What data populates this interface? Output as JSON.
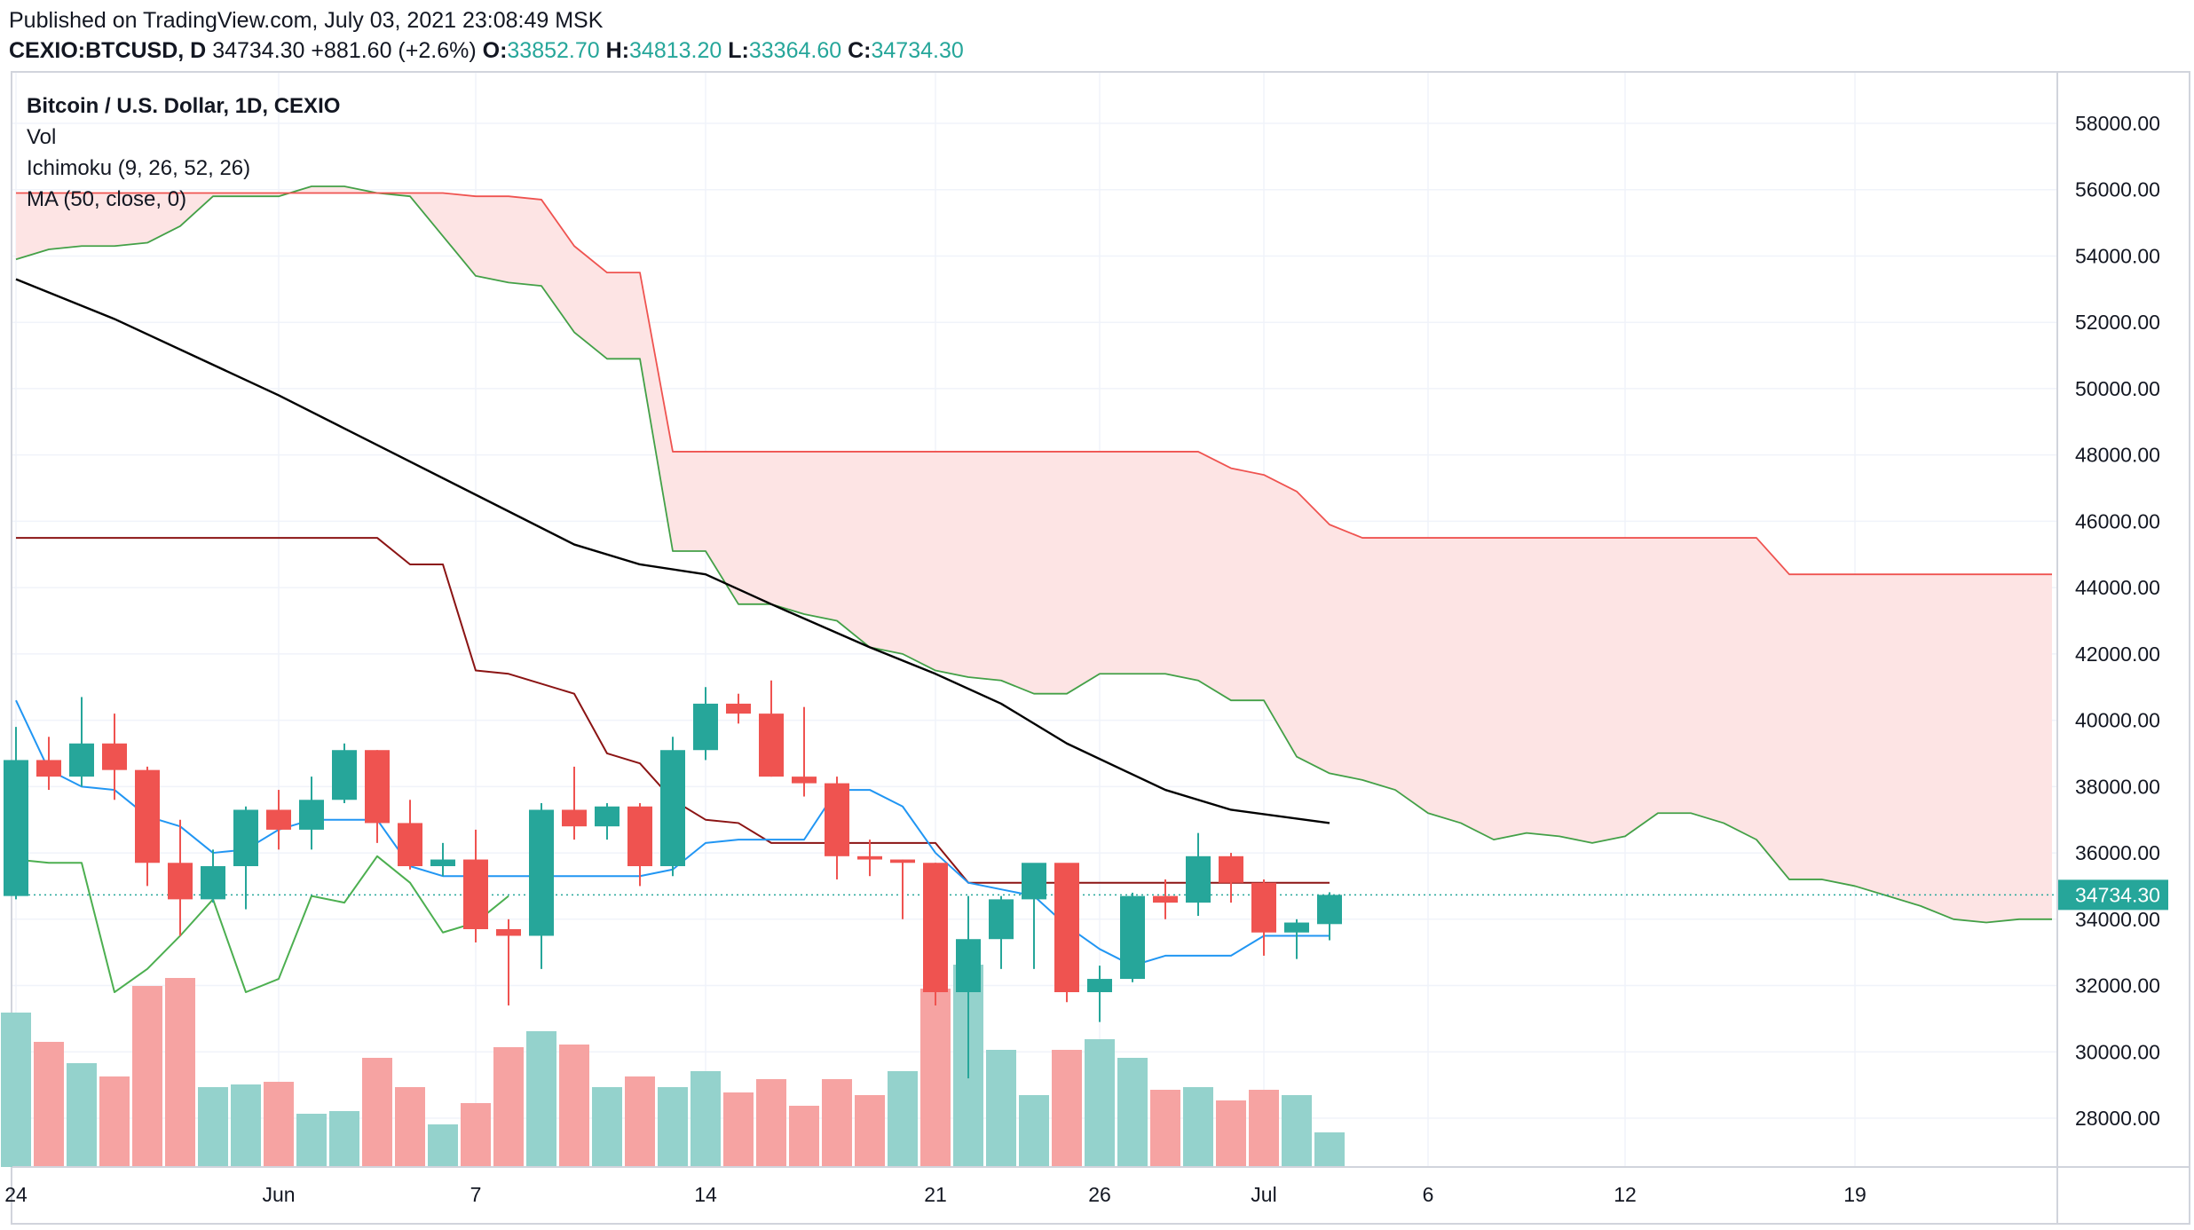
{
  "header": {
    "published": "Published on TradingView.com, July 03, 2021 23:08:49 MSK",
    "symbol": "CEXIO:BTCUSD, D",
    "last": "34734.30",
    "change": "+881.60 (+2.6%)",
    "o_label": "O:",
    "o_value": "33852.70",
    "h_label": "H:",
    "h_value": "34813.20",
    "l_label": "L:",
    "l_value": "33364.60",
    "c_label": "C:",
    "c_value": "34734.30"
  },
  "legend": {
    "title": "Bitcoin / U.S. Dollar, 1D, CEXIO",
    "vol": "Vol",
    "ichimoku": "Ichimoku (9, 26, 52, 26)",
    "ma": "MA (50, close, 0)"
  },
  "colors": {
    "up": "#26a69a",
    "down": "#ef5350",
    "vol_up": "#94d2cc",
    "vol_down": "#f6a3a2",
    "ma": "#000000",
    "kijun": "#8b1414",
    "tenkan": "#2196f3",
    "span_a": "#43a047",
    "span_b": "#ef5350",
    "cloud": "#fde4e4",
    "lagging": "#4caf50",
    "last_price": "#26a69a",
    "grid": "#f0f3fa"
  },
  "chart_data": {
    "type": "candlestick",
    "y_axis": {
      "range": [
        26500,
        59000
      ],
      "ticks": [
        "58000.00",
        "56000.00",
        "54000.00",
        "52000.00",
        "50000.00",
        "48000.00",
        "46000.00",
        "44000.00",
        "42000.00",
        "40000.00",
        "38000.00",
        "36000.00",
        "34000.00",
        "32000.00",
        "30000.00",
        "28000.00"
      ]
    },
    "x_axis": {
      "ticks": [
        {
          "label": "24",
          "i": 0
        },
        {
          "label": "Jun",
          "i": 8
        },
        {
          "label": "7",
          "i": 14
        },
        {
          "label": "14",
          "i": 21
        },
        {
          "label": "21",
          "i": 28
        },
        {
          "label": "26",
          "i": 33
        },
        {
          "label": "Jul",
          "i": 38
        },
        {
          "label": "6",
          "i": 43
        },
        {
          "label": "12",
          "i": 49
        },
        {
          "label": "19",
          "i": 56
        }
      ]
    },
    "last_price_label": "34734.30",
    "last_price": 34734.3,
    "candles": [
      {
        "o": 34700,
        "h": 39800,
        "l": 34600,
        "c": 38800
      },
      {
        "o": 38800,
        "h": 39500,
        "l": 37900,
        "c": 38300
      },
      {
        "o": 38300,
        "h": 40700,
        "l": 38000,
        "c": 39300
      },
      {
        "o": 39300,
        "h": 40200,
        "l": 37600,
        "c": 38500
      },
      {
        "o": 38500,
        "h": 38600,
        "l": 35000,
        "c": 35700
      },
      {
        "o": 35700,
        "h": 37000,
        "l": 33500,
        "c": 34600
      },
      {
        "o": 34600,
        "h": 36100,
        "l": 34500,
        "c": 35600
      },
      {
        "o": 35600,
        "h": 37400,
        "l": 34300,
        "c": 37300
      },
      {
        "o": 37300,
        "h": 37900,
        "l": 36100,
        "c": 36700
      },
      {
        "o": 36700,
        "h": 38300,
        "l": 36100,
        "c": 37600
      },
      {
        "o": 37600,
        "h": 39300,
        "l": 37500,
        "c": 39100
      },
      {
        "o": 39100,
        "h": 39100,
        "l": 36300,
        "c": 36900
      },
      {
        "o": 36900,
        "h": 37600,
        "l": 35500,
        "c": 35600
      },
      {
        "o": 35600,
        "h": 36300,
        "l": 35300,
        "c": 35800
      },
      {
        "o": 35800,
        "h": 36700,
        "l": 33300,
        "c": 33700
      },
      {
        "o": 33700,
        "h": 34000,
        "l": 31400,
        "c": 33500
      },
      {
        "o": 33500,
        "h": 37500,
        "l": 32500,
        "c": 37300
      },
      {
        "o": 37300,
        "h": 38600,
        "l": 36400,
        "c": 36800
      },
      {
        "o": 36800,
        "h": 37500,
        "l": 36400,
        "c": 37400
      },
      {
        "o": 37400,
        "h": 37500,
        "l": 35000,
        "c": 35600
      },
      {
        "o": 35600,
        "h": 39500,
        "l": 35300,
        "c": 39100
      },
      {
        "o": 39100,
        "h": 41000,
        "l": 38800,
        "c": 40500
      },
      {
        "o": 40500,
        "h": 40800,
        "l": 39900,
        "c": 40200
      },
      {
        "o": 40200,
        "h": 41200,
        "l": 38300,
        "c": 38300
      },
      {
        "o": 38300,
        "h": 40400,
        "l": 37700,
        "c": 38100
      },
      {
        "o": 38100,
        "h": 38300,
        "l": 35200,
        "c": 35900
      },
      {
        "o": 35900,
        "h": 36400,
        "l": 35300,
        "c": 35800
      },
      {
        "o": 35800,
        "h": 35800,
        "l": 34000,
        "c": 35700
      },
      {
        "o": 35700,
        "h": 35700,
        "l": 31400,
        "c": 31800
      },
      {
        "o": 31800,
        "h": 34700,
        "l": 29200,
        "c": 33400
      },
      {
        "o": 33400,
        "h": 34700,
        "l": 32500,
        "c": 34600
      },
      {
        "o": 34600,
        "h": 35400,
        "l": 32500,
        "c": 35700
      },
      {
        "o": 35700,
        "h": 35500,
        "l": 31500,
        "c": 31800
      },
      {
        "o": 31800,
        "h": 32600,
        "l": 30900,
        "c": 32200
      },
      {
        "o": 32200,
        "h": 34800,
        "l": 32100,
        "c": 34700
      },
      {
        "o": 34700,
        "h": 35200,
        "l": 34000,
        "c": 34500
      },
      {
        "o": 34500,
        "h": 36600,
        "l": 34100,
        "c": 35900
      },
      {
        "o": 35900,
        "h": 36000,
        "l": 34500,
        "c": 35100
      },
      {
        "o": 35100,
        "h": 35200,
        "l": 32900,
        "c": 33600
      },
      {
        "o": 33600,
        "h": 34000,
        "l": 32800,
        "c": 33900
      },
      {
        "o": 33853,
        "h": 34813,
        "l": 33365,
        "c": 34734
      }
    ],
    "volume": [
      {
        "v": 0.58,
        "up": true
      },
      {
        "v": 0.47,
        "up": false
      },
      {
        "v": 0.39,
        "up": true
      },
      {
        "v": 0.34,
        "up": false
      },
      {
        "v": 0.68,
        "up": false
      },
      {
        "v": 0.71,
        "up": false
      },
      {
        "v": 0.3,
        "up": true
      },
      {
        "v": 0.31,
        "up": true
      },
      {
        "v": 0.32,
        "up": false
      },
      {
        "v": 0.2,
        "up": true
      },
      {
        "v": 0.21,
        "up": true
      },
      {
        "v": 0.41,
        "up": false
      },
      {
        "v": 0.3,
        "up": false
      },
      {
        "v": 0.16,
        "up": true
      },
      {
        "v": 0.24,
        "up": false
      },
      {
        "v": 0.45,
        "up": false
      },
      {
        "v": 0.51,
        "up": true
      },
      {
        "v": 0.46,
        "up": false
      },
      {
        "v": 0.3,
        "up": true
      },
      {
        "v": 0.34,
        "up": false
      },
      {
        "v": 0.3,
        "up": true
      },
      {
        "v": 0.36,
        "up": true
      },
      {
        "v": 0.28,
        "up": false
      },
      {
        "v": 0.33,
        "up": false
      },
      {
        "v": 0.23,
        "up": false
      },
      {
        "v": 0.33,
        "up": false
      },
      {
        "v": 0.27,
        "up": false
      },
      {
        "v": 0.36,
        "up": true
      },
      {
        "v": 0.67,
        "up": false
      },
      {
        "v": 0.76,
        "up": true
      },
      {
        "v": 0.44,
        "up": true
      },
      {
        "v": 0.27,
        "up": true
      },
      {
        "v": 0.44,
        "up": false
      },
      {
        "v": 0.48,
        "up": true
      },
      {
        "v": 0.41,
        "up": true
      },
      {
        "v": 0.29,
        "up": false
      },
      {
        "v": 0.3,
        "up": true
      },
      {
        "v": 0.25,
        "up": false
      },
      {
        "v": 0.29,
        "up": false
      },
      {
        "v": 0.27,
        "up": true
      },
      {
        "v": 0.13,
        "up": true
      }
    ],
    "ma50": [
      [
        0,
        53300
      ],
      [
        3,
        52100
      ],
      [
        8,
        49800
      ],
      [
        10,
        48800
      ],
      [
        14,
        46800
      ],
      [
        17,
        45300
      ],
      [
        19,
        44700
      ],
      [
        21,
        44400
      ],
      [
        23,
        43500
      ],
      [
        26,
        42200
      ],
      [
        28,
        41400
      ],
      [
        30,
        40500
      ],
      [
        32,
        39300
      ],
      [
        35,
        37900
      ],
      [
        37,
        37300
      ],
      [
        40,
        36900
      ]
    ],
    "kijun": [
      [
        0,
        45500
      ],
      [
        11,
        45500
      ],
      [
        12,
        44700
      ],
      [
        13,
        44700
      ],
      [
        14,
        41500
      ],
      [
        15,
        41400
      ],
      [
        17,
        40800
      ],
      [
        18,
        39000
      ],
      [
        19,
        38700
      ],
      [
        20,
        37600
      ],
      [
        21,
        37000
      ],
      [
        22,
        36900
      ],
      [
        23,
        36300
      ],
      [
        27,
        36300
      ],
      [
        28,
        36300
      ],
      [
        29,
        35100
      ],
      [
        40,
        35100
      ]
    ],
    "tenkan": [
      [
        0,
        40600
      ],
      [
        1,
        38500
      ],
      [
        2,
        38000
      ],
      [
        3,
        37900
      ],
      [
        4,
        37100
      ],
      [
        5,
        36800
      ],
      [
        6,
        36000
      ],
      [
        7,
        36100
      ],
      [
        8,
        36700
      ],
      [
        9,
        37000
      ],
      [
        10,
        37000
      ],
      [
        11,
        37000
      ],
      [
        12,
        35600
      ],
      [
        13,
        35300
      ],
      [
        14,
        35300
      ],
      [
        15,
        35300
      ],
      [
        16,
        35300
      ],
      [
        17,
        35300
      ],
      [
        18,
        35300
      ],
      [
        19,
        35300
      ],
      [
        20,
        35500
      ],
      [
        21,
        36300
      ],
      [
        22,
        36400
      ],
      [
        23,
        36400
      ],
      [
        24,
        36400
      ],
      [
        25,
        37900
      ],
      [
        26,
        37900
      ],
      [
        27,
        37400
      ],
      [
        28,
        36000
      ],
      [
        29,
        35100
      ],
      [
        30,
        34900
      ],
      [
        31,
        34700
      ],
      [
        32,
        33800
      ],
      [
        33,
        33100
      ],
      [
        34,
        32600
      ],
      [
        35,
        32900
      ],
      [
        36,
        32900
      ],
      [
        37,
        32900
      ],
      [
        38,
        33500
      ],
      [
        39,
        33500
      ],
      [
        40,
        33500
      ]
    ],
    "lagging": [
      [
        0,
        35800
      ],
      [
        1,
        35700
      ],
      [
        2,
        35700
      ],
      [
        3,
        31800
      ],
      [
        4,
        32500
      ],
      [
        5,
        33500
      ],
      [
        6,
        34600
      ],
      [
        7,
        31800
      ],
      [
        8,
        32200
      ],
      [
        9,
        34700
      ],
      [
        10,
        34500
      ],
      [
        11,
        35900
      ],
      [
        12,
        35100
      ],
      [
        13,
        33600
      ],
      [
        14,
        33900
      ],
      [
        15,
        34700
      ]
    ],
    "span_a": [
      [
        0,
        53900
      ],
      [
        1,
        54200
      ],
      [
        2,
        54300
      ],
      [
        3,
        54300
      ],
      [
        4,
        54400
      ],
      [
        5,
        54900
      ],
      [
        6,
        55800
      ],
      [
        7,
        55800
      ],
      [
        8,
        55800
      ],
      [
        9,
        56100
      ],
      [
        10,
        56100
      ],
      [
        11,
        55900
      ],
      [
        12,
        55800
      ],
      [
        13,
        54600
      ],
      [
        14,
        53400
      ],
      [
        15,
        53200
      ],
      [
        16,
        53100
      ],
      [
        17,
        51700
      ],
      [
        18,
        50900
      ],
      [
        19,
        50900
      ],
      [
        20,
        45100
      ],
      [
        21,
        45100
      ],
      [
        22,
        43500
      ],
      [
        23,
        43500
      ],
      [
        24,
        43200
      ],
      [
        25,
        43000
      ],
      [
        26,
        42200
      ],
      [
        27,
        42000
      ],
      [
        28,
        41500
      ],
      [
        29,
        41300
      ],
      [
        30,
        41200
      ],
      [
        31,
        40800
      ],
      [
        32,
        40800
      ],
      [
        33,
        41400
      ],
      [
        34,
        41400
      ],
      [
        35,
        41400
      ],
      [
        36,
        41200
      ],
      [
        37,
        40600
      ],
      [
        38,
        40600
      ],
      [
        39,
        38900
      ],
      [
        40,
        38400
      ],
      [
        41,
        38200
      ],
      [
        42,
        37900
      ],
      [
        43,
        37200
      ],
      [
        44,
        36900
      ],
      [
        45,
        36400
      ],
      [
        46,
        36600
      ],
      [
        47,
        36500
      ],
      [
        48,
        36300
      ],
      [
        49,
        36500
      ],
      [
        50,
        37200
      ],
      [
        51,
        37200
      ],
      [
        52,
        36900
      ],
      [
        53,
        36400
      ],
      [
        54,
        35200
      ],
      [
        55,
        35200
      ],
      [
        56,
        35000
      ],
      [
        57,
        34700
      ],
      [
        58,
        34400
      ],
      [
        59,
        34000
      ],
      [
        60,
        33900
      ],
      [
        61,
        34000
      ],
      [
        62,
        34000
      ]
    ],
    "span_b": [
      [
        0,
        55900
      ],
      [
        1,
        55900
      ],
      [
        2,
        55900
      ],
      [
        3,
        55900
      ],
      [
        4,
        55900
      ],
      [
        5,
        55900
      ],
      [
        6,
        55900
      ],
      [
        7,
        55900
      ],
      [
        8,
        55900
      ],
      [
        9,
        55900
      ],
      [
        10,
        55900
      ],
      [
        11,
        55900
      ],
      [
        12,
        55900
      ],
      [
        13,
        55900
      ],
      [
        14,
        55800
      ],
      [
        15,
        55800
      ],
      [
        16,
        55700
      ],
      [
        17,
        54300
      ],
      [
        18,
        53500
      ],
      [
        19,
        53500
      ],
      [
        20,
        48100
      ],
      [
        21,
        48100
      ],
      [
        22,
        48100
      ],
      [
        23,
        48100
      ],
      [
        24,
        48100
      ],
      [
        25,
        48100
      ],
      [
        26,
        48100
      ],
      [
        27,
        48100
      ],
      [
        28,
        48100
      ],
      [
        29,
        48100
      ],
      [
        30,
        48100
      ],
      [
        31,
        48100
      ],
      [
        32,
        48100
      ],
      [
        33,
        48100
      ],
      [
        34,
        48100
      ],
      [
        35,
        48100
      ],
      [
        36,
        48100
      ],
      [
        37,
        47600
      ],
      [
        38,
        47400
      ],
      [
        39,
        46900
      ],
      [
        40,
        45900
      ],
      [
        41,
        45500
      ],
      [
        42,
        45500
      ],
      [
        43,
        45500
      ],
      [
        44,
        45500
      ],
      [
        45,
        45500
      ],
      [
        46,
        45500
      ],
      [
        47,
        45500
      ],
      [
        48,
        45500
      ],
      [
        49,
        45500
      ],
      [
        50,
        45500
      ],
      [
        51,
        45500
      ],
      [
        52,
        45500
      ],
      [
        53,
        45500
      ],
      [
        54,
        44400
      ],
      [
        55,
        44400
      ],
      [
        56,
        44400
      ],
      [
        57,
        44400
      ],
      [
        58,
        44400
      ],
      [
        59,
        44400
      ],
      [
        60,
        44400
      ],
      [
        61,
        44400
      ],
      [
        62,
        44400
      ]
    ]
  }
}
